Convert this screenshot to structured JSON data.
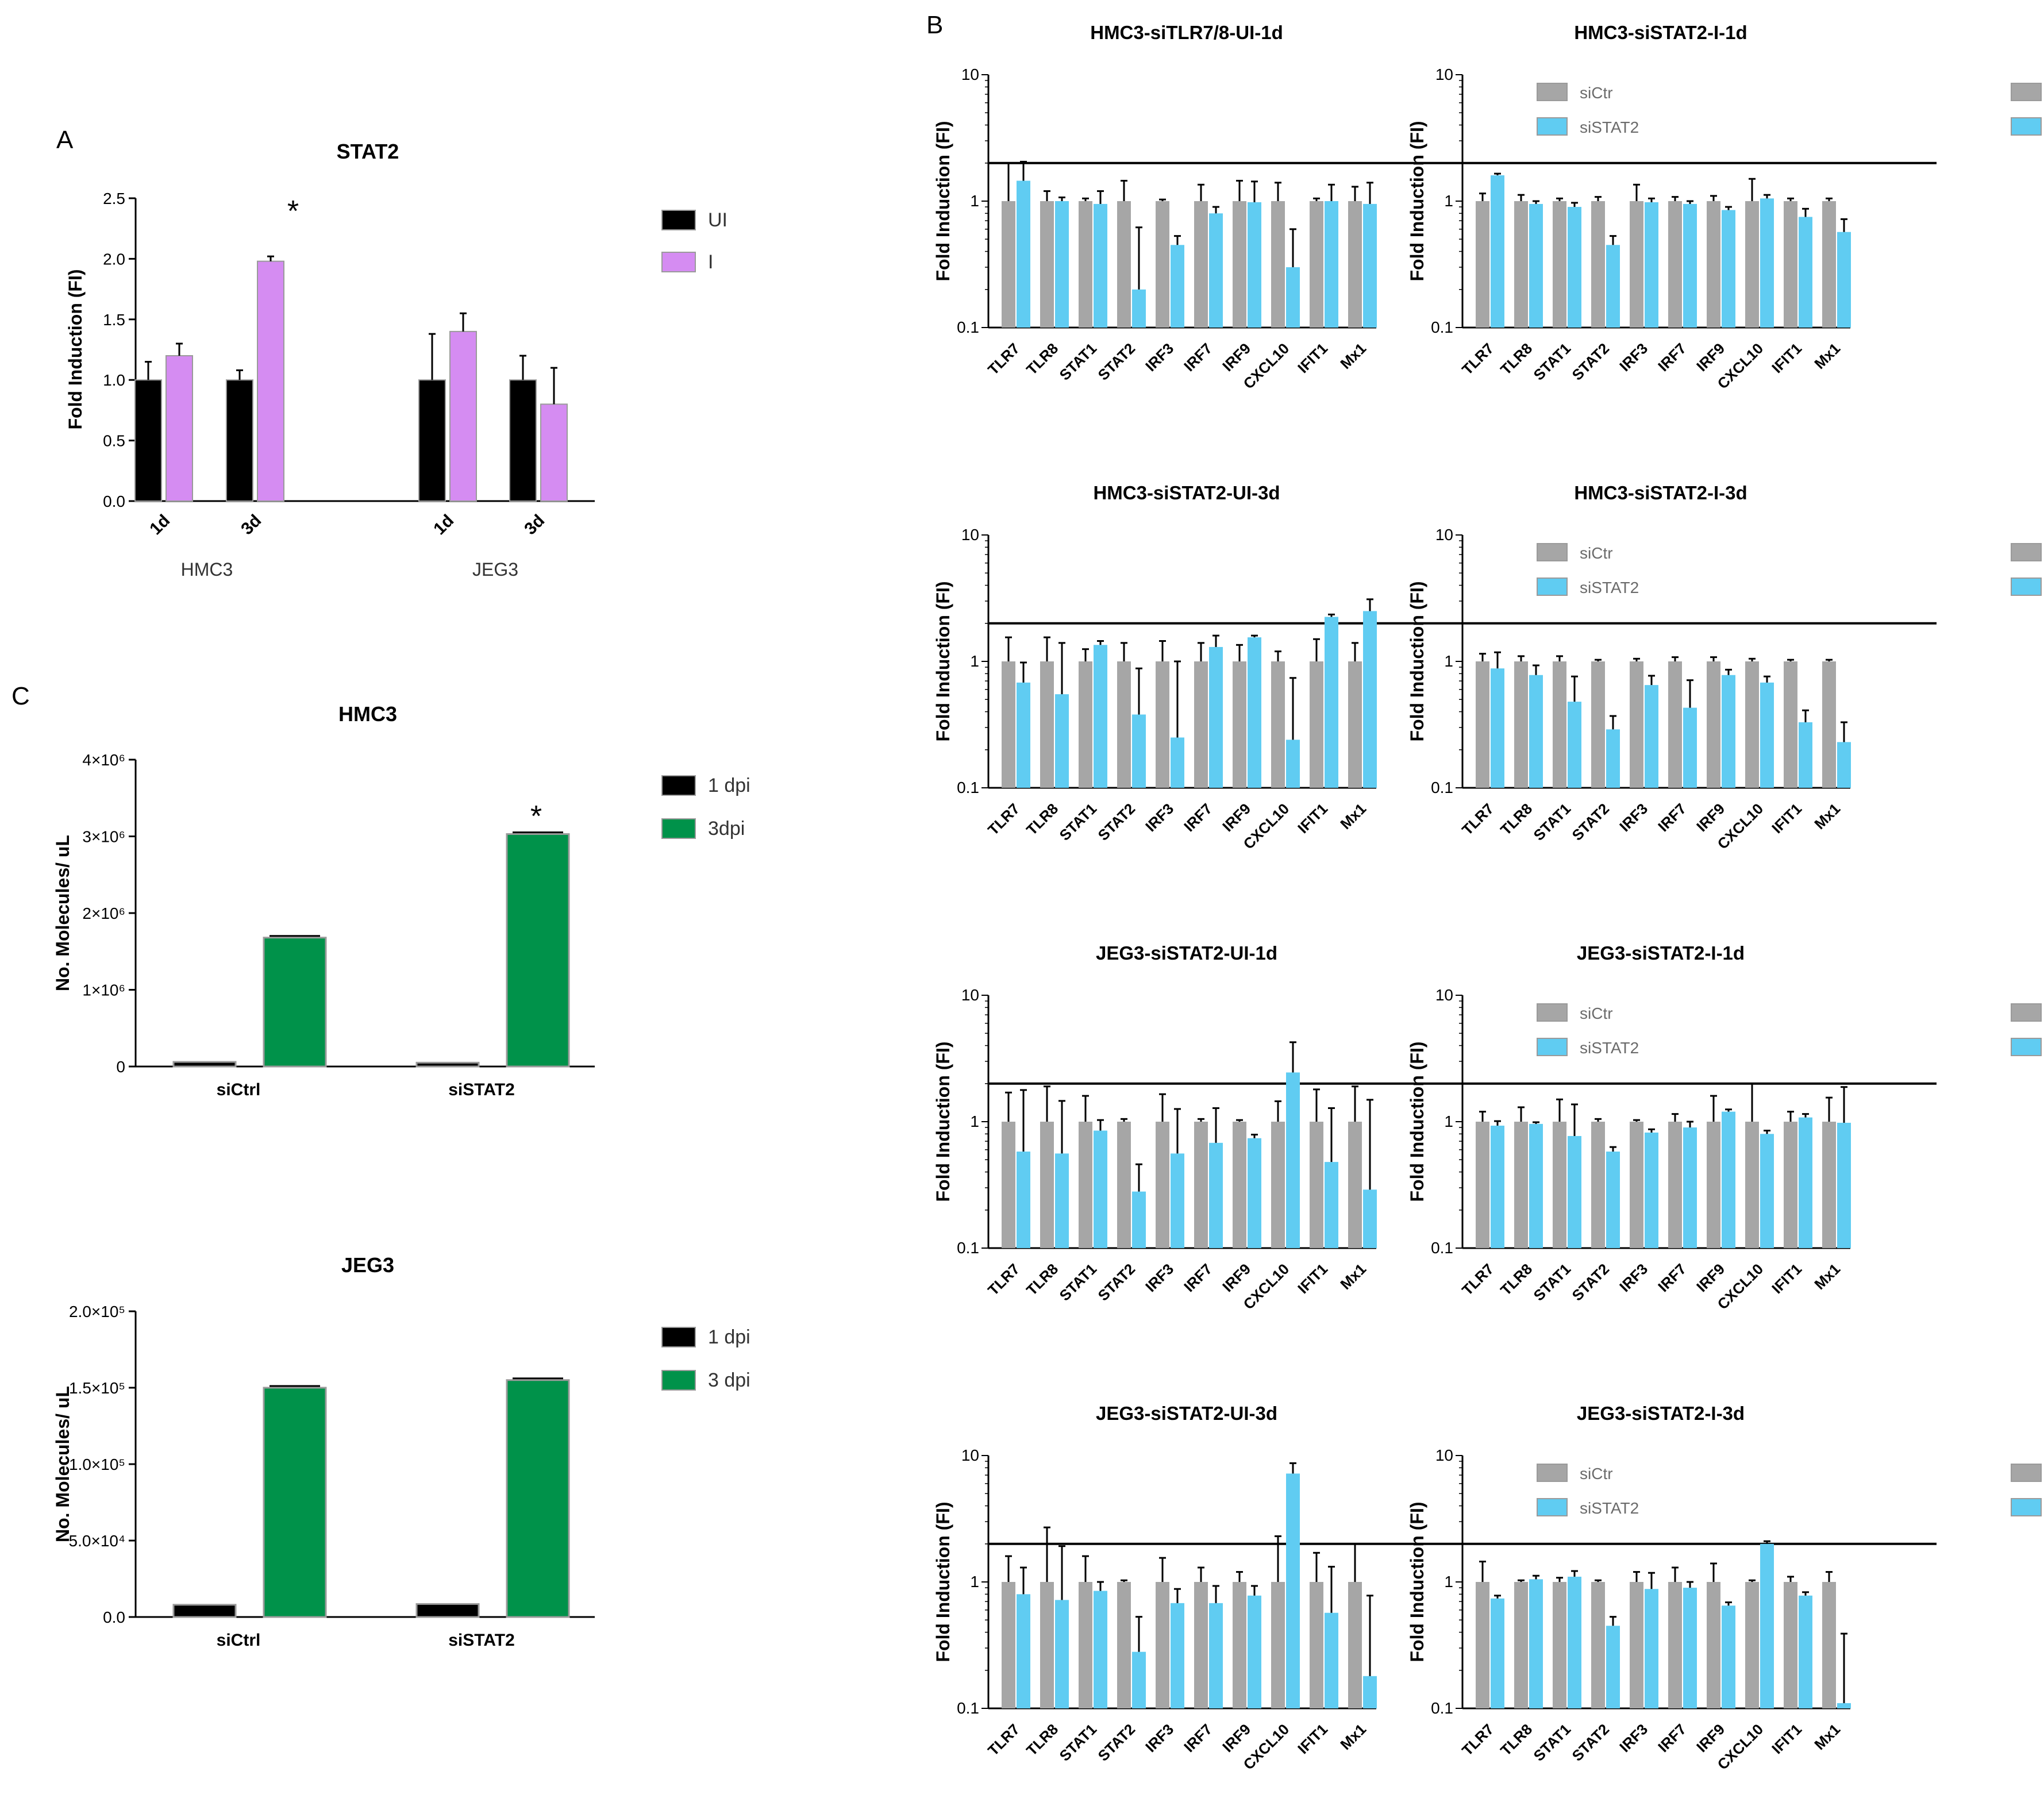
{
  "colors": {
    "black_bar": "#000000",
    "pink_bar": "#d58cf2",
    "green_bar": "#00924a",
    "gray_bar": "#a6a6a6",
    "blue_bar": "#60ccf2",
    "bar_outline": "#9a9a9a"
  },
  "panel_labels": {
    "a": "A",
    "b": "B",
    "c": "C"
  },
  "chart_data": [
    {
      "id": "A",
      "type": "bar",
      "title": "STAT2",
      "ylabel": "Fold Induction (FI)",
      "ylim": [
        0,
        2.5
      ],
      "yticks": [
        "0.0",
        "0.5",
        "1.0",
        "1.5",
        "2.0",
        "2.5"
      ],
      "groups": [
        {
          "label": "HMC3",
          "categories": [
            "1d",
            "3d"
          ]
        },
        {
          "label": "JEG3",
          "categories": [
            "1d",
            "3d"
          ]
        }
      ],
      "series": [
        {
          "name": "UI",
          "values": [
            1.0,
            1.0,
            1.0,
            1.0
          ],
          "errors": [
            0.15,
            0.08,
            0.38,
            0.2
          ]
        },
        {
          "name": "I",
          "values": [
            1.2,
            1.98,
            1.4,
            0.8
          ],
          "errors": [
            0.1,
            0.04,
            0.15,
            0.3
          ]
        }
      ],
      "annotation": "*"
    },
    {
      "id": "C1",
      "type": "bar",
      "title": "HMC3",
      "ylabel": "No. Molecules/ uL",
      "ylim": [
        0,
        4000000
      ],
      "yticks": [
        "0",
        "1×10⁶",
        "2×10⁶",
        "3×10⁶",
        "4×10⁶"
      ],
      "categories": [
        "siCtrl",
        "siSTAT2"
      ],
      "series": [
        {
          "name": "1 dpi",
          "values": [
            60000,
            50000
          ]
        },
        {
          "name": "3dpi",
          "values": [
            1680000,
            3030000
          ]
        }
      ],
      "annotation": "*"
    },
    {
      "id": "C2",
      "type": "bar",
      "title": "JEG3",
      "ylabel": "No. Molecules/ uL",
      "ylim": [
        0,
        200000
      ],
      "yticks": [
        "0.0",
        "5.0×10⁴",
        "1.0×10⁵",
        "1.5×10⁵",
        "2.0×10⁵"
      ],
      "categories": [
        "siCtrl",
        "siSTAT2"
      ],
      "series": [
        {
          "name": "1 dpi",
          "values": [
            8000,
            8500
          ]
        },
        {
          "name": "3 dpi",
          "values": [
            150000,
            155000
          ]
        }
      ]
    },
    {
      "id": "B1",
      "type": "bar",
      "scale": "log",
      "title": "HMC3-siTLR7/8-UI-1d",
      "ylabel": "Fold Induction (FI)",
      "ylim": [
        0.1,
        10
      ],
      "yticks": [
        "0.1",
        "1",
        "10"
      ],
      "threshold": 2,
      "categories": [
        "TLR7",
        "TLR8",
        "STAT1",
        "STAT2",
        "IRF3",
        "IRF7",
        "IRF9",
        "CXCL10",
        "IFIT1",
        "Mx1"
      ],
      "series": [
        {
          "name": "siCtr",
          "values": [
            1,
            1,
            1,
            1,
            1,
            1,
            1,
            1,
            1,
            1
          ],
          "errors": [
            1.0,
            0.2,
            0.05,
            0.45,
            0.03,
            0.35,
            0.45,
            0.4,
            0.05,
            0.3
          ]
        },
        {
          "name": "siSTAT2",
          "values": [
            1.45,
            1.0,
            0.95,
            0.2,
            0.45,
            0.8,
            0.98,
            0.3,
            1.0,
            0.95
          ],
          "errors": [
            0.6,
            0.07,
            0.25,
            0.42,
            0.08,
            0.1,
            0.45,
            0.3,
            0.35,
            0.45
          ]
        }
      ]
    },
    {
      "id": "B2",
      "type": "bar",
      "scale": "log",
      "title": "HMC3-siSTAT2-I-1d",
      "ylabel": "Fold Induction (FI)",
      "ylim": [
        0.1,
        10
      ],
      "yticks": [
        "0.1",
        "1",
        "10"
      ],
      "threshold": 2,
      "categories": [
        "TLR7",
        "TLR8",
        "STAT1",
        "STAT2",
        "IRF3",
        "IRF7",
        "IRF9",
        "CXCL10",
        "IFIT1",
        "Mx1"
      ],
      "series": [
        {
          "name": "siCtr",
          "values": [
            1,
            1,
            1,
            1,
            1,
            1,
            1,
            1,
            1,
            1
          ],
          "errors": [
            0.15,
            0.12,
            0.05,
            0.08,
            0.35,
            0.08,
            0.1,
            0.5,
            0.05,
            0.05
          ]
        },
        {
          "name": "siSTAT2",
          "values": [
            1.6,
            0.95,
            0.9,
            0.45,
            0.98,
            0.95,
            0.85,
            1.05,
            0.75,
            0.57
          ],
          "errors": [
            0.05,
            0.05,
            0.07,
            0.08,
            0.07,
            0.05,
            0.05,
            0.07,
            0.12,
            0.15
          ]
        }
      ]
    },
    {
      "id": "B3",
      "type": "bar",
      "scale": "log",
      "title": "HMC3-siSTAT2-UI-3d",
      "ylabel": "Fold Induction (FI)",
      "ylim": [
        0.1,
        10
      ],
      "yticks": [
        "0.1",
        "1",
        "10"
      ],
      "threshold": 2,
      "categories": [
        "TLR7",
        "TLR8",
        "STAT1",
        "STAT2",
        "IRF3",
        "IRF7",
        "IRF9",
        "CXCL10",
        "IFIT1",
        "Mx1"
      ],
      "series": [
        {
          "name": "siCtr",
          "values": [
            1,
            1,
            1,
            1,
            1,
            1,
            1,
            1,
            1,
            1
          ],
          "errors": [
            0.55,
            0.55,
            0.25,
            0.4,
            0.45,
            0.4,
            0.35,
            0.2,
            0.5,
            0.4
          ]
        },
        {
          "name": "siSTAT2",
          "values": [
            0.68,
            0.55,
            1.35,
            0.38,
            0.25,
            1.3,
            1.55,
            0.24,
            2.25,
            2.5
          ],
          "errors": [
            0.3,
            0.85,
            0.1,
            0.5,
            0.75,
            0.3,
            0.05,
            0.5,
            0.1,
            0.6
          ]
        }
      ]
    },
    {
      "id": "B4",
      "type": "bar",
      "scale": "log",
      "title": "HMC3-siSTAT2-I-3d",
      "ylabel": "Fold Induction (FI)",
      "ylim": [
        0.1,
        10
      ],
      "yticks": [
        "0.1",
        "1",
        "10"
      ],
      "threshold": 2,
      "categories": [
        "TLR7",
        "TLR8",
        "STAT1",
        "STAT2",
        "IRF3",
        "IRF7",
        "IRF9",
        "CXCL10",
        "IFIT1",
        "Mx1"
      ],
      "series": [
        {
          "name": "siCtr",
          "values": [
            1,
            1,
            1,
            1,
            1,
            1,
            1,
            1,
            1,
            1
          ],
          "errors": [
            0.15,
            0.1,
            0.1,
            0.03,
            0.05,
            0.08,
            0.08,
            0.05,
            0.03,
            0.03
          ]
        },
        {
          "name": "siSTAT2",
          "values": [
            0.88,
            0.78,
            0.48,
            0.29,
            0.65,
            0.43,
            0.78,
            0.68,
            0.33,
            0.23
          ],
          "errors": [
            0.3,
            0.15,
            0.28,
            0.08,
            0.12,
            0.28,
            0.08,
            0.08,
            0.08,
            0.1
          ]
        }
      ]
    },
    {
      "id": "B5",
      "type": "bar",
      "scale": "log",
      "title": "JEG3-siSTAT2-UI-1d",
      "ylabel": "Fold Induction (FI)",
      "ylim": [
        0.1,
        10
      ],
      "yticks": [
        "0.1",
        "1",
        "10"
      ],
      "threshold": 2,
      "categories": [
        "TLR7",
        "TLR8",
        "STAT1",
        "STAT2",
        "IRF3",
        "IRF7",
        "IRF9",
        "CXCL10",
        "IFIT1",
        "Mx1"
      ],
      "series": [
        {
          "name": "siCtr",
          "values": [
            1,
            1,
            1,
            1,
            1,
            1,
            1,
            1,
            1,
            1
          ],
          "errors": [
            0.7,
            0.9,
            0.6,
            0.05,
            0.65,
            0.05,
            0.03,
            0.45,
            0.8,
            0.9
          ]
        },
        {
          "name": "siSTAT2",
          "values": [
            0.58,
            0.56,
            0.85,
            0.28,
            0.56,
            0.68,
            0.74,
            2.45,
            0.48,
            0.29
          ],
          "errors": [
            1.2,
            0.9,
            0.18,
            0.18,
            0.7,
            0.6,
            0.05,
            1.8,
            0.8,
            1.2
          ]
        }
      ]
    },
    {
      "id": "B6",
      "type": "bar",
      "scale": "log",
      "title": "JEG3-siSTAT2-I-1d",
      "ylabel": "Fold Induction (FI)",
      "ylim": [
        0.1,
        10
      ],
      "yticks": [
        "0.1",
        "1",
        "10"
      ],
      "threshold": 2,
      "categories": [
        "TLR7",
        "TLR8",
        "STAT1",
        "STAT2",
        "IRF3",
        "IRF7",
        "IRF9",
        "CXCL10",
        "IFIT1",
        "Mx1"
      ],
      "series": [
        {
          "name": "siCtr",
          "values": [
            1,
            1,
            1,
            1,
            1,
            1,
            1,
            1,
            1,
            1
          ],
          "errors": [
            0.2,
            0.3,
            0.5,
            0.05,
            0.03,
            0.15,
            0.6,
            1.0,
            0.2,
            0.55
          ]
        },
        {
          "name": "siSTAT2",
          "values": [
            0.93,
            0.96,
            0.77,
            0.58,
            0.82,
            0.9,
            1.2,
            0.8,
            1.08,
            0.98
          ],
          "errors": [
            0.08,
            0.03,
            0.6,
            0.05,
            0.05,
            0.1,
            0.05,
            0.05,
            0.07,
            0.9
          ]
        }
      ]
    },
    {
      "id": "B7",
      "type": "bar",
      "scale": "log",
      "title": "JEG3-siSTAT2-UI-3d",
      "ylabel": "Fold Induction (FI)",
      "ylim": [
        0.1,
        10
      ],
      "yticks": [
        "0.1",
        "1",
        "10"
      ],
      "threshold": 2,
      "categories": [
        "TLR7",
        "TLR8",
        "STAT1",
        "STAT2",
        "IRF3",
        "IRF7",
        "IRF9",
        "CXCL10",
        "IFIT1",
        "Mx1"
      ],
      "series": [
        {
          "name": "siCtr",
          "values": [
            1,
            1,
            1,
            1,
            1,
            1,
            1,
            1,
            1,
            1
          ],
          "errors": [
            0.6,
            1.7,
            0.6,
            0.03,
            0.55,
            0.3,
            0.2,
            1.3,
            0.7,
            1.0
          ]
        },
        {
          "name": "siSTAT2",
          "values": [
            0.8,
            0.72,
            0.85,
            0.28,
            0.68,
            0.68,
            0.78,
            7.2,
            0.57,
            0.18
          ],
          "errors": [
            0.5,
            1.2,
            0.15,
            0.25,
            0.2,
            0.25,
            0.15,
            1.5,
            0.75,
            0.6
          ]
        }
      ]
    },
    {
      "id": "B8",
      "type": "bar",
      "scale": "log",
      "title": "JEG3-siSTAT2-I-3d",
      "ylabel": "Fold Induction (FI)",
      "ylim": [
        0.1,
        10
      ],
      "yticks": [
        "0.1",
        "1",
        "10"
      ],
      "threshold": 2,
      "categories": [
        "TLR7",
        "TLR8",
        "STAT1",
        "STAT2",
        "IRF3",
        "IRF7",
        "IRF9",
        "CXCL10",
        "IFIT1",
        "Mx1"
      ],
      "series": [
        {
          "name": "siCtr",
          "values": [
            1,
            1,
            1,
            1,
            1,
            1,
            1,
            1,
            1,
            1
          ],
          "errors": [
            0.45,
            0.03,
            0.08,
            0.03,
            0.2,
            0.3,
            0.4,
            0.03,
            0.1,
            0.2
          ]
        },
        {
          "name": "siSTAT2",
          "values": [
            0.74,
            1.05,
            1.1,
            0.45,
            0.88,
            0.9,
            0.65,
            2.0,
            0.78,
            0.11
          ],
          "errors": [
            0.04,
            0.07,
            0.12,
            0.08,
            0.3,
            0.1,
            0.04,
            0.1,
            0.05,
            0.28
          ]
        }
      ]
    }
  ]
}
